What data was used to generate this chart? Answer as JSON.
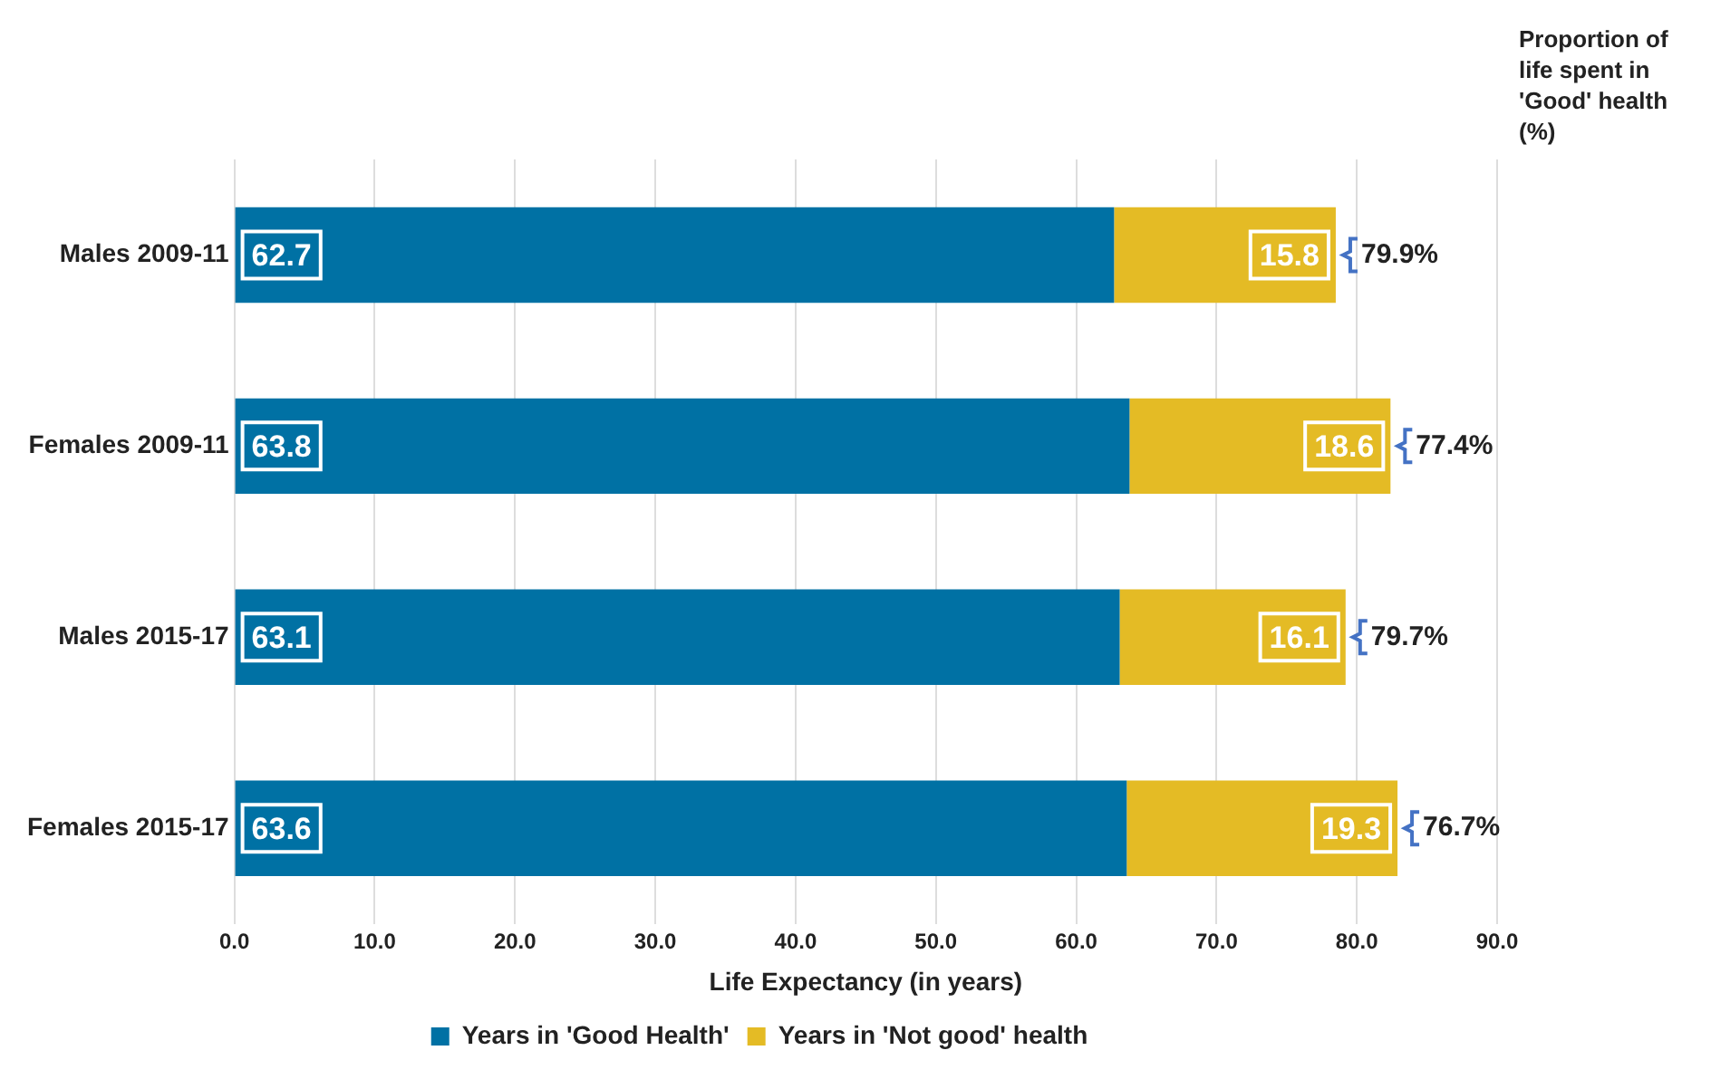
{
  "chart_data": {
    "type": "bar",
    "orientation": "horizontal",
    "stacked": true,
    "categories": [
      "Males 2009-11",
      "Females 2009-11",
      "Males 2015-17",
      "Females 2015-17"
    ],
    "series": [
      {
        "name": "Years in 'Good Health'",
        "color": "#0071a4",
        "values": [
          62.7,
          63.8,
          63.1,
          63.6
        ]
      },
      {
        "name": "Years in 'Not good' health",
        "color": "#e4bb25",
        "values": [
          15.8,
          18.6,
          16.1,
          19.3
        ]
      }
    ],
    "xlabel": "Life Expectancy (in years)",
    "xlim": [
      0,
      90
    ],
    "xticks": [
      {
        "value": 0,
        "label": "0.0"
      },
      {
        "value": 10,
        "label": "10.0"
      },
      {
        "value": 20,
        "label": "20.0"
      },
      {
        "value": 30,
        "label": "30.0"
      },
      {
        "value": 40,
        "label": "40.0"
      },
      {
        "value": 50,
        "label": "50.0"
      },
      {
        "value": 60,
        "label": "60.0"
      },
      {
        "value": 70,
        "label": "70.0"
      },
      {
        "value": 80,
        "label": "80.0"
      },
      {
        "value": 90,
        "label": "90.0"
      }
    ],
    "grid": "x",
    "legend": "bottom",
    "data_labels": true,
    "annotations": [
      "Proportion of life spent in 'Good' health (%)",
      {
        "text": "79.9%",
        "x": 78.5,
        "y": "Males 2009-11"
      },
      {
        "text": "77.4%",
        "x": 82.4,
        "y": "Females 2009-11"
      },
      {
        "text": "79.7%",
        "x": 79.2,
        "y": "Males 2015-17"
      },
      {
        "text": "76.7%",
        "x": 82.9,
        "y": "Females 2015-17"
      }
    ]
  }
}
